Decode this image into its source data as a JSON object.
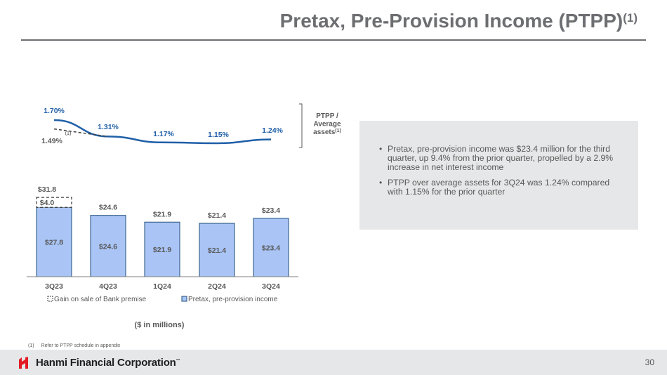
{
  "header": {
    "title": "Pretax, Pre-Provision Income (PTPP)",
    "title_sup": "(1)"
  },
  "chart_data": {
    "type": "bar",
    "stacked": true,
    "units_label": "($ in millions)",
    "categories": [
      "3Q23",
      "4Q23",
      "1Q24",
      "2Q24",
      "3Q24"
    ],
    "series": [
      {
        "name": "Pretax, pre-provision income",
        "values": [
          27.8,
          24.6,
          21.9,
          21.4,
          23.4
        ],
        "labels": [
          "$27.8",
          "$24.6",
          "$21.9",
          "$21.4",
          "$23.4"
        ]
      },
      {
        "name": "Gain on sale of Bank premise",
        "values": [
          4.0,
          0,
          0,
          0,
          0
        ],
        "labels": [
          "$4.0",
          "",
          "",
          "",
          ""
        ]
      }
    ],
    "totals": [
      31.8,
      24.6,
      21.9,
      21.4,
      23.4
    ],
    "total_labels": [
      "$31.8",
      "$24.6",
      "$21.9",
      "$21.4",
      "$23.4"
    ],
    "line": {
      "name": "PTPP / Average assets",
      "values": [
        1.7,
        1.31,
        1.17,
        1.15,
        1.24
      ],
      "labels": [
        "1.70%",
        "1.31%",
        "1.17%",
        "1.15%",
        "1.24%"
      ]
    },
    "line_adjusted": {
      "value": 1.49,
      "label": "1.49%",
      "note": "(1)"
    },
    "line_axis_label": [
      "PTPP /",
      "Average",
      "assets"
    ],
    "line_axis_label_sup": "(1)",
    "legend": [
      "Gain on sale of Bank premise",
      "Pretax, pre-provision income"
    ],
    "colors": {
      "bar_fill": "#a9c4f5",
      "bar_border": "#1f4e79",
      "line": "#1f5fa8",
      "label_blue": "#1f5fa8"
    }
  },
  "bullets": [
    "Pretax, pre-provision income was $23.4 million for the third quarter, up 9.4% from the prior quarter, propelled by a 2.9% increase in net interest income",
    "PTPP over average assets for 3Q24 was 1.24% compared with 1.15% for the prior quarter"
  ],
  "footnote": {
    "number": "(1)",
    "text": "Refer to PTPP schedule in appendix"
  },
  "footer": {
    "company": "Hanmi Financial Corporation",
    "trademark": "™",
    "page_number": "30",
    "logo_color": "#e31b23"
  }
}
